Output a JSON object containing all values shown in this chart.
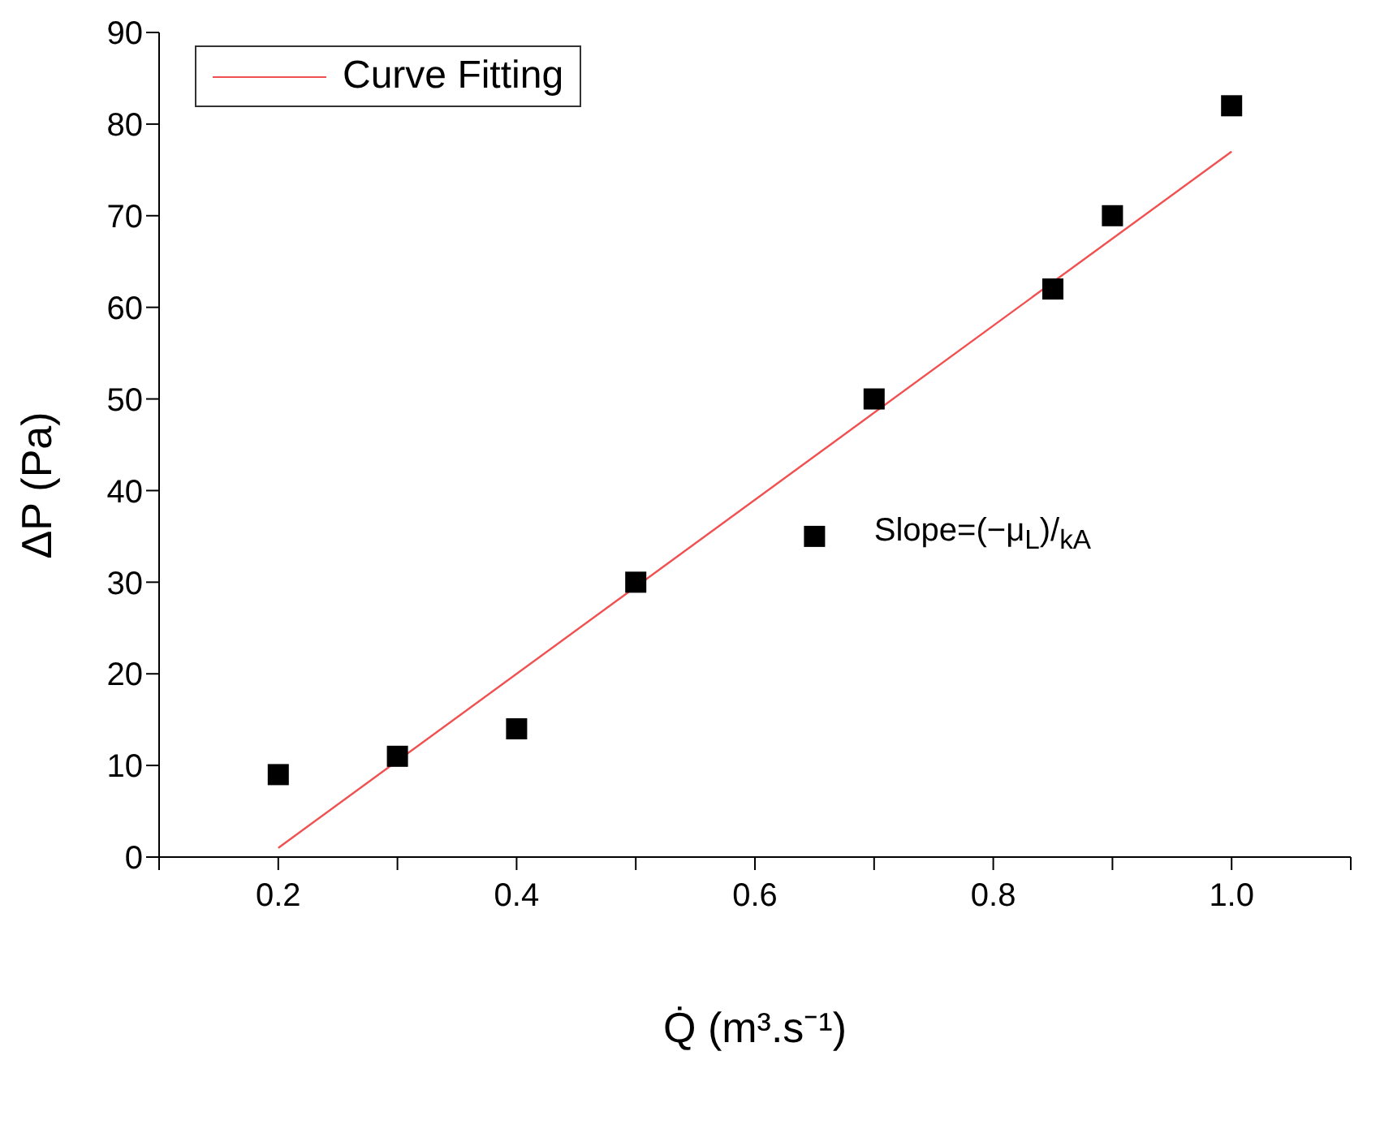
{
  "chart_data": {
    "type": "scatter",
    "xlabel": "Q̇ (m³.s⁻¹)",
    "ylabel": "ΔP (Pa)",
    "annotations": [
      "Slope=(−μ$_{L}$)/$_{kA}$"
    ],
    "series": [
      {
        "color": "#000000",
        "marker": "square",
        "x": [
          0.2,
          0.3,
          0.4,
          0.5,
          0.65,
          0.7,
          0.85,
          0.9,
          1.0
        ],
        "values": [
          9,
          11,
          14,
          30,
          35,
          50,
          62,
          70,
          82
        ]
      },
      {
        "type": "line",
        "name": "Curve Fitting",
        "color": "#f05050",
        "marker": "none",
        "x": [
          0.2,
          1.0
        ],
        "values": [
          1,
          77
        ]
      }
    ],
    "xlim": [
      0.1,
      1.1
    ],
    "xticks": [
      {
        "value": 0.1,
        "label": null
      },
      {
        "value": 0.2,
        "label": "0.2"
      },
      {
        "value": 0.3,
        "label": null
      },
      {
        "value": 0.4,
        "label": "0.4"
      },
      {
        "value": 0.5,
        "label": null
      },
      {
        "value": 0.6,
        "label": "0.6"
      },
      {
        "value": 0.7,
        "label": null
      },
      {
        "value": 0.8,
        "label": "0.8"
      },
      {
        "value": 0.9,
        "label": null
      },
      {
        "value": 1.0,
        "label": "1.0"
      },
      {
        "value": 1.1,
        "label": null
      }
    ],
    "ylim": [
      0,
      90
    ],
    "yticks": [
      0,
      10,
      20,
      30,
      40,
      50,
      60,
      70,
      80,
      90
    ],
    "grid": false,
    "legend": "top left"
  }
}
